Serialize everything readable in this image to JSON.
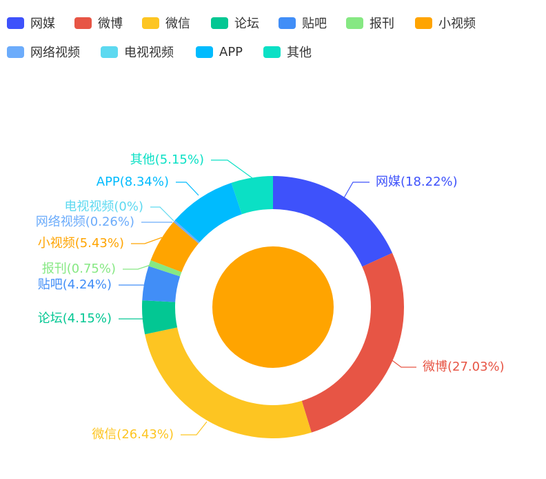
{
  "chart_data": {
    "type": "pie",
    "variant": "donut",
    "title": "",
    "legend_position": "top-left",
    "label_format": "{name}({percent}%)",
    "slices": [
      {
        "name": "网媒",
        "percent": "18.22",
        "color": "#3e52fb"
      },
      {
        "name": "微博",
        "percent": "27.03",
        "color": "#e75545"
      },
      {
        "name": "微信",
        "percent": "26.43",
        "color": "#fdc522"
      },
      {
        "name": "论坛",
        "percent": "4.15",
        "color": "#03c793"
      },
      {
        "name": "贴吧",
        "percent": "4.24",
        "color": "#418ef7"
      },
      {
        "name": "报刊",
        "percent": "0.75",
        "color": "#86e883"
      },
      {
        "name": "小视频",
        "percent": "5.43",
        "color": "#ffa400"
      },
      {
        "name": "网络视频",
        "percent": "0.26",
        "color": "#6cacfb"
      },
      {
        "name": "电视视频",
        "percent": "0",
        "color": "#5dd9f0"
      },
      {
        "name": "APP",
        "percent": "8.34",
        "color": "#00bbfe"
      },
      {
        "name": "其他",
        "percent": "5.15",
        "color": "#0be0c5"
      }
    ],
    "center_color": "#ffa400"
  }
}
